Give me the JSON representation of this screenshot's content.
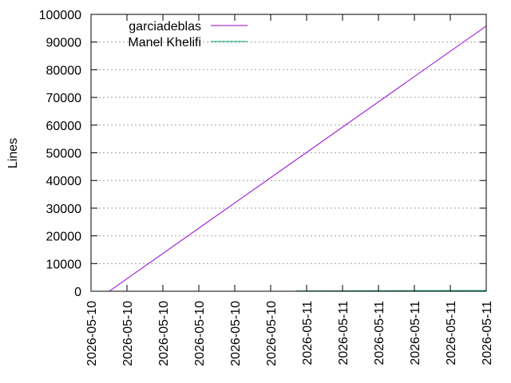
{
  "chart_data": {
    "type": "line",
    "title": "",
    "xlabel": "",
    "ylabel": "Lines",
    "x_ticks": [
      "2026-05-10",
      "2026-05-10",
      "2026-05-10",
      "2026-05-10",
      "2026-05-10",
      "2026-05-10",
      "2026-05-11",
      "2026-05-11",
      "2026-05-11",
      "2026-05-11",
      "2026-05-11",
      "2026-05-11"
    ],
    "ylim": [
      0,
      100000
    ],
    "y_ticks": [
      0,
      10000,
      20000,
      30000,
      40000,
      50000,
      60000,
      70000,
      80000,
      90000,
      100000
    ],
    "grid": true,
    "legend_position": "top-left",
    "series": [
      {
        "name": "garciadeblas",
        "color": "#9400d3",
        "x": [
          0.046,
          1.0
        ],
        "y": [
          0,
          95800
        ]
      },
      {
        "name": "Manel Khelifi",
        "color": "#009e73",
        "x": [
          0.518,
          1.0
        ],
        "y": [
          120,
          250
        ]
      }
    ]
  }
}
